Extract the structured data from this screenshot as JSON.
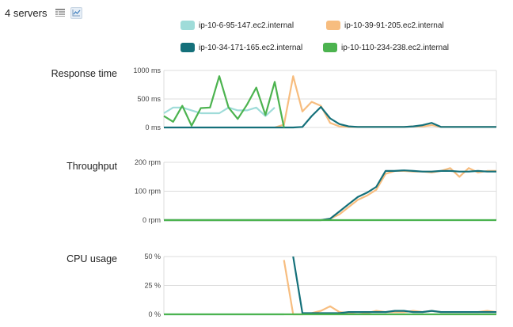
{
  "header": {
    "title": "4 servers"
  },
  "icons": {
    "table": "table-view-icon",
    "chart": "chart-view-icon"
  },
  "legend": [
    {
      "name": "ip-10-6-95-147.ec2.internal",
      "color": "#9fdcd9"
    },
    {
      "name": "ip-10-39-91-205.ec2.internal",
      "color": "#f7bd7f"
    },
    {
      "name": "ip-10-34-171-165.ec2.internal",
      "color": "#14707a"
    },
    {
      "name": "ip-10-110-234-238.ec2.internal",
      "color": "#4cb34f"
    }
  ],
  "chart_data": [
    {
      "type": "line",
      "title": "Response time",
      "ylim": [
        0,
        1000
      ],
      "yticks": [
        "1000 ms",
        "500 ms",
        "0 ms"
      ],
      "ytick_values": [
        1000,
        500,
        0
      ],
      "grid": true,
      "x": [
        0,
        1,
        2,
        3,
        4,
        5,
        6,
        7,
        8,
        9,
        10,
        11,
        12,
        13,
        14,
        15,
        16,
        17,
        18,
        19,
        20,
        21,
        22,
        23,
        24,
        25,
        26,
        27,
        28,
        29,
        30,
        31,
        32,
        33,
        34,
        35,
        36
      ],
      "series": [
        {
          "name": "ip-10-6-95-147.ec2.internal",
          "color": "#9fdcd9",
          "values": [
            250,
            350,
            350,
            300,
            250,
            250,
            250,
            350,
            300,
            300,
            350,
            200,
            350,
            null,
            null,
            null,
            null,
            null,
            null,
            null,
            null,
            null,
            null,
            null,
            null,
            null,
            null,
            null,
            null,
            null,
            null,
            null,
            null,
            null,
            null,
            null,
            null
          ]
        },
        {
          "name": "ip-10-39-91-205.ec2.internal",
          "color": "#f7bd7f",
          "values": [
            null,
            null,
            null,
            null,
            null,
            null,
            null,
            null,
            null,
            null,
            null,
            null,
            0,
            50,
            900,
            280,
            450,
            380,
            80,
            20,
            10,
            10,
            10,
            10,
            10,
            10,
            10,
            20,
            20,
            40,
            10,
            10,
            10,
            10,
            10,
            10,
            10
          ]
        },
        {
          "name": "ip-10-34-171-165.ec2.internal",
          "color": "#14707a",
          "values": [
            0,
            0,
            0,
            0,
            0,
            0,
            0,
            0,
            0,
            0,
            0,
            0,
            0,
            0,
            0,
            10,
            200,
            360,
            160,
            60,
            20,
            10,
            10,
            10,
            10,
            10,
            10,
            20,
            40,
            80,
            10,
            10,
            10,
            10,
            10,
            10,
            10
          ]
        },
        {
          "name": "ip-10-110-234-238.ec2.internal",
          "color": "#4cb34f",
          "values": [
            200,
            100,
            380,
            30,
            340,
            350,
            900,
            350,
            150,
            400,
            700,
            220,
            800,
            0,
            null,
            null,
            null,
            null,
            null,
            null,
            null,
            null,
            null,
            null,
            null,
            null,
            null,
            null,
            null,
            null,
            null,
            null,
            null,
            null,
            null,
            null,
            null
          ]
        }
      ]
    },
    {
      "type": "line",
      "title": "Throughput",
      "ylim": [
        0,
        200
      ],
      "yticks": [
        "200 rpm",
        "100 rpm",
        "0 rpm"
      ],
      "ytick_values": [
        200,
        100,
        0
      ],
      "grid": true,
      "x": [
        0,
        1,
        2,
        3,
        4,
        5,
        6,
        7,
        8,
        9,
        10,
        11,
        12,
        13,
        14,
        15,
        16,
        17,
        18,
        19,
        20,
        21,
        22,
        23,
        24,
        25,
        26,
        27,
        28,
        29,
        30,
        31,
        32,
        33,
        34,
        35,
        36
      ],
      "series": [
        {
          "name": "ip-10-6-95-147.ec2.internal",
          "color": "#9fdcd9",
          "values": [
            0,
            0,
            0,
            0,
            0,
            0,
            0,
            0,
            0,
            0,
            0,
            0,
            0,
            0,
            0,
            0,
            0,
            0,
            0,
            0,
            0,
            0,
            0,
            0,
            0,
            0,
            0,
            0,
            0,
            0,
            0,
            0,
            0,
            0,
            0,
            0,
            0
          ]
        },
        {
          "name": "ip-10-39-91-205.ec2.internal",
          "color": "#f7bd7f",
          "values": [
            0,
            0,
            0,
            0,
            0,
            0,
            0,
            0,
            0,
            0,
            0,
            0,
            0,
            0,
            0,
            0,
            0,
            0,
            5,
            20,
            45,
            70,
            85,
            105,
            160,
            170,
            170,
            168,
            168,
            165,
            170,
            180,
            150,
            180,
            165,
            170,
            170
          ]
        },
        {
          "name": "ip-10-34-171-165.ec2.internal",
          "color": "#14707a",
          "values": [
            0,
            0,
            0,
            0,
            0,
            0,
            0,
            0,
            0,
            0,
            0,
            0,
            0,
            0,
            0,
            0,
            0,
            0,
            5,
            30,
            55,
            80,
            95,
            115,
            170,
            170,
            172,
            170,
            168,
            168,
            170,
            170,
            168,
            168,
            170,
            168,
            168
          ]
        },
        {
          "name": "ip-10-110-234-238.ec2.internal",
          "color": "#4cb34f",
          "values": [
            0,
            0,
            0,
            0,
            0,
            0,
            0,
            0,
            0,
            0,
            0,
            0,
            0,
            0,
            0,
            0,
            0,
            0,
            0,
            0,
            0,
            0,
            0,
            0,
            0,
            0,
            0,
            0,
            0,
            0,
            0,
            0,
            0,
            0,
            0,
            0,
            0
          ]
        }
      ]
    },
    {
      "type": "line",
      "title": "CPU usage",
      "ylim": [
        0,
        50
      ],
      "yticks": [
        "50 %",
        "25 %",
        "0 %"
      ],
      "ytick_values": [
        50,
        25,
        0
      ],
      "grid": true,
      "x": [
        0,
        1,
        2,
        3,
        4,
        5,
        6,
        7,
        8,
        9,
        10,
        11,
        12,
        13,
        14,
        15,
        16,
        17,
        18,
        19,
        20,
        21,
        22,
        23,
        24,
        25,
        26,
        27,
        28,
        29,
        30,
        31,
        32,
        33,
        34,
        35,
        36
      ],
      "series": [
        {
          "name": "ip-10-6-95-147.ec2.internal",
          "color": "#9fdcd9",
          "values": [
            0,
            0,
            0,
            0,
            0,
            0,
            0,
            0,
            0,
            0,
            0,
            0,
            0,
            0,
            null,
            null,
            null,
            null,
            null,
            null,
            null,
            null,
            null,
            null,
            null,
            null,
            null,
            null,
            null,
            null,
            null,
            null,
            null,
            null,
            null,
            null,
            null
          ]
        },
        {
          "name": "ip-10-39-91-205.ec2.internal",
          "color": "#f7bd7f",
          "values": [
            null,
            null,
            null,
            null,
            null,
            null,
            null,
            null,
            null,
            null,
            null,
            null,
            null,
            47,
            0,
            0,
            1,
            3,
            7,
            2,
            1,
            2,
            1,
            3,
            2,
            2,
            2,
            3,
            2,
            3,
            2,
            2,
            2,
            2,
            2,
            3,
            2
          ]
        },
        {
          "name": "ip-10-34-171-165.ec2.internal",
          "color": "#14707a",
          "values": [
            null,
            null,
            null,
            null,
            null,
            null,
            null,
            null,
            null,
            null,
            null,
            null,
            null,
            null,
            50,
            1,
            1,
            1,
            1,
            1,
            2,
            2,
            2,
            2,
            2,
            3,
            3,
            2,
            2,
            3,
            2,
            2,
            2,
            2,
            2,
            2,
            2
          ]
        },
        {
          "name": "ip-10-110-234-238.ec2.internal",
          "color": "#4cb34f",
          "values": [
            0,
            0,
            0,
            0,
            0,
            0,
            0,
            0,
            0,
            0,
            0,
            0,
            0,
            0,
            0,
            0,
            0,
            0,
            0,
            0,
            0,
            0,
            0,
            0,
            0,
            0,
            0,
            0,
            0,
            0,
            0,
            0,
            0,
            0,
            0,
            0,
            0
          ]
        }
      ]
    }
  ]
}
